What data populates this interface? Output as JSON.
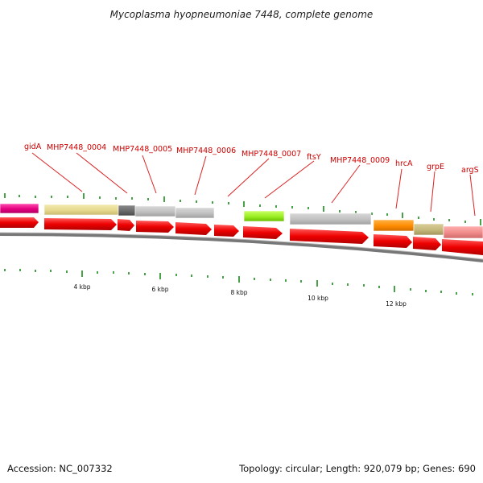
{
  "title": "Mycoplasma hyopneumoniae 7448, complete genome",
  "footer": {
    "accession": "Accession: NC_007332",
    "summary": "Topology: circular; Length: 920,079 bp; Genes: 690"
  },
  "colors": {
    "label": "#cc0000",
    "arrow": "#ee0000",
    "tick": "#1a8a1a",
    "backbone": "#777777"
  },
  "gene_labels": [
    "gidA",
    "MHP7448_0004",
    "MHP7448_0005",
    "MHP7448_0006",
    "MHP7448_0007",
    "ftsY",
    "MHP7448_0009",
    "hrcA",
    "grpE",
    "argS"
  ],
  "scale_labels": [
    "4 kbp",
    "6 kbp",
    "8 kbp",
    "10 kbp",
    "12 kbp"
  ]
}
